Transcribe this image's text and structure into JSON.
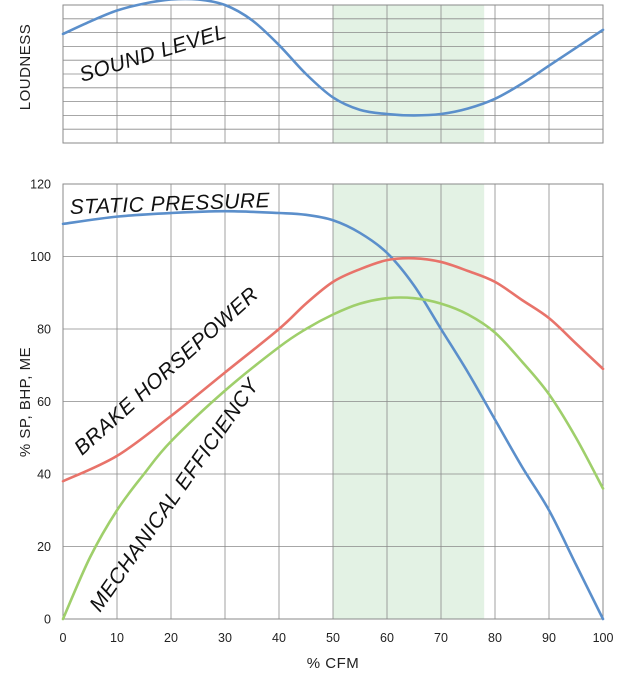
{
  "chart_data": [
    {
      "type": "line",
      "ylabel": "LOUDNESS",
      "xlim": [
        0,
        100
      ],
      "ylim": [
        0,
        10
      ],
      "grid": true,
      "series": [
        {
          "name": "SOUND LEVEL",
          "color": "#5b8fcb",
          "x": [
            0,
            5,
            10,
            15,
            20,
            25,
            30,
            35,
            40,
            45,
            50,
            55,
            60,
            65,
            70,
            75,
            80,
            85,
            90,
            95,
            100
          ],
          "y": [
            7.9,
            8.8,
            9.6,
            10.1,
            10.4,
            10.4,
            10.0,
            8.9,
            7.1,
            5.0,
            3.3,
            2.4,
            2.1,
            2.0,
            2.1,
            2.5,
            3.2,
            4.3,
            5.6,
            6.9,
            8.2
          ]
        }
      ],
      "highlight_band": {
        "x0": 50,
        "x1": 78,
        "color": "#e3f2e4"
      }
    },
    {
      "type": "line",
      "xlabel": "% CFM",
      "ylabel": "% SP, BHP, ME",
      "xlim": [
        0,
        100
      ],
      "ylim": [
        0,
        120
      ],
      "xticks": [
        "0",
        "10",
        "20",
        "30",
        "40",
        "50",
        "60",
        "70",
        "80",
        "90",
        "100"
      ],
      "yticks": [
        "0",
        "20",
        "40",
        "60",
        "80",
        "100",
        "120"
      ],
      "grid": true,
      "highlight_band": {
        "x0": 50,
        "x1": 78,
        "color": "#e3f2e4"
      },
      "series": [
        {
          "name": "STATIC PRESSURE",
          "color": "#5b8fcb",
          "x": [
            0,
            10,
            20,
            30,
            40,
            45,
            50,
            55,
            60,
            65,
            70,
            75,
            80,
            85,
            90,
            95,
            100
          ],
          "y": [
            109,
            111,
            112,
            112.5,
            112,
            111.5,
            110,
            106.5,
            101,
            92,
            80,
            68,
            55,
            42,
            30,
            15,
            0
          ]
        },
        {
          "name": "BRAKE HORSEPOWER",
          "color": "#e8736a",
          "x": [
            0,
            10,
            20,
            30,
            40,
            45,
            50,
            55,
            60,
            65,
            70,
            75,
            80,
            85,
            90,
            95,
            100
          ],
          "y": [
            38,
            45,
            56,
            68,
            80,
            87,
            93,
            96.5,
            99,
            99.5,
            98.5,
            96,
            93,
            88,
            83,
            76,
            69
          ]
        },
        {
          "name": "MECHANICAL EFFICIENCY",
          "color": "#9fcf6b",
          "x": [
            0,
            5,
            10,
            15,
            20,
            30,
            40,
            45,
            50,
            55,
            60,
            65,
            70,
            75,
            80,
            85,
            90,
            95,
            100
          ],
          "y": [
            0,
            17,
            30,
            40,
            49,
            63,
            75,
            80,
            84,
            87,
            88.5,
            88.5,
            87,
            84,
            79,
            71,
            62,
            50,
            36
          ]
        }
      ]
    }
  ]
}
